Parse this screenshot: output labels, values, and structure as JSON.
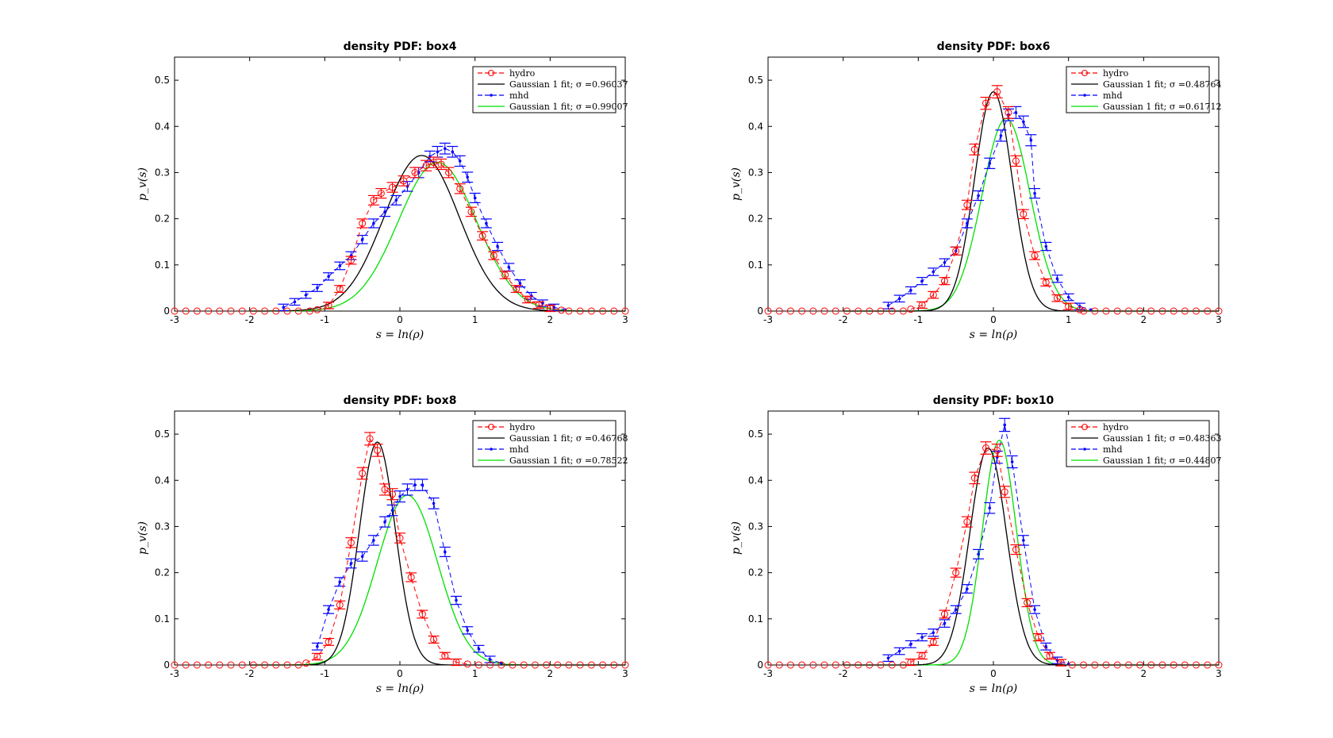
{
  "chart_data": [
    {
      "type": "line",
      "title": "density PDF: box4",
      "xlabel": "s = ln(ρ)",
      "ylabel": "p_v(s)",
      "xlim": [
        -3,
        3
      ],
      "ylim": [
        0,
        0.55
      ],
      "xticks": [
        -3,
        -2,
        -1,
        0,
        1,
        2,
        3
      ],
      "yticks": [
        0,
        0.1,
        0.2,
        0.3,
        0.4,
        0.5
      ],
      "legend_position": "top-right",
      "hydro": {
        "name": "hydro",
        "x": [
          -1.1,
          -0.95,
          -0.8,
          -0.65,
          -0.5,
          -0.35,
          -0.25,
          -0.1,
          0.05,
          0.2,
          0.35,
          0.45,
          0.55,
          0.65,
          0.8,
          0.95,
          1.1,
          1.25,
          1.4,
          1.55,
          1.7,
          1.85,
          2.0,
          2.15
        ],
        "y": [
          0.003,
          0.012,
          0.048,
          0.11,
          0.19,
          0.24,
          0.255,
          0.268,
          0.282,
          0.3,
          0.315,
          0.322,
          0.318,
          0.3,
          0.265,
          0.215,
          0.163,
          0.12,
          0.078,
          0.048,
          0.025,
          0.013,
          0.006,
          0.002
        ]
      },
      "hydro_fit": {
        "name": "Gaussian 1 fit; σ =0.96037",
        "amp": 0.337,
        "mu": 0.29,
        "sigma": 0.5
      },
      "mhd": {
        "name": "mhd",
        "x": [
          -1.55,
          -1.4,
          -1.25,
          -1.1,
          -0.95,
          -0.8,
          -0.65,
          -0.5,
          -0.35,
          -0.2,
          -0.05,
          0.1,
          0.25,
          0.4,
          0.5,
          0.6,
          0.7,
          0.8,
          0.9,
          1.0,
          1.15,
          1.3,
          1.45,
          1.6,
          1.75,
          1.9,
          2.05,
          2.2
        ],
        "y": [
          0.008,
          0.02,
          0.035,
          0.05,
          0.075,
          0.098,
          0.12,
          0.155,
          0.19,
          0.215,
          0.24,
          0.27,
          0.3,
          0.335,
          0.345,
          0.352,
          0.345,
          0.325,
          0.29,
          0.245,
          0.19,
          0.14,
          0.095,
          0.06,
          0.033,
          0.017,
          0.008,
          0.003
        ]
      },
      "mhd_fit": {
        "name": "Gaussian 1 fit; σ =0.99007",
        "amp": 0.322,
        "mu": 0.5,
        "sigma": 0.52
      }
    },
    {
      "type": "line",
      "title": "density PDF: box6",
      "xlabel": "s = ln(ρ)",
      "ylabel": "p_v(s)",
      "xlim": [
        -3,
        3
      ],
      "ylim": [
        0,
        0.55
      ],
      "xticks": [
        -3,
        -2,
        -1,
        0,
        1,
        2,
        3
      ],
      "yticks": [
        0,
        0.1,
        0.2,
        0.3,
        0.4,
        0.5
      ],
      "legend_position": "top-right",
      "hydro": {
        "name": "hydro",
        "x": [
          -1.1,
          -0.95,
          -0.8,
          -0.65,
          -0.5,
          -0.35,
          -0.25,
          -0.1,
          0.05,
          0.2,
          0.3,
          0.4,
          0.55,
          0.7,
          0.85,
          1.0,
          1.15
        ],
        "y": [
          0.004,
          0.013,
          0.035,
          0.065,
          0.13,
          0.23,
          0.35,
          0.45,
          0.475,
          0.43,
          0.325,
          0.21,
          0.12,
          0.062,
          0.028,
          0.01,
          0.003
        ]
      },
      "hydro_fit": {
        "name": "Gaussian 1 fit; σ =0.48764",
        "amp": 0.475,
        "mu": 0.0,
        "sigma": 0.25
      },
      "mhd": {
        "name": "mhd",
        "x": [
          -1.4,
          -1.25,
          -1.1,
          -0.95,
          -0.8,
          -0.65,
          -0.5,
          -0.35,
          -0.2,
          -0.05,
          0.1,
          0.2,
          0.3,
          0.4,
          0.5,
          0.55,
          0.7,
          0.85,
          1.0,
          1.15,
          1.3
        ],
        "y": [
          0.012,
          0.027,
          0.045,
          0.065,
          0.085,
          0.105,
          0.13,
          0.19,
          0.25,
          0.32,
          0.38,
          0.425,
          0.43,
          0.41,
          0.37,
          0.255,
          0.14,
          0.07,
          0.03,
          0.01,
          0.003
        ]
      },
      "mhd_fit": {
        "name": "Gaussian 1 fit; σ =0.61712",
        "amp": 0.417,
        "mu": 0.17,
        "sigma": 0.32
      }
    },
    {
      "type": "line",
      "title": "density PDF: box8",
      "xlabel": "s = ln(ρ)",
      "ylabel": "p_v(s)",
      "xlim": [
        -3,
        3
      ],
      "ylim": [
        0,
        0.55
      ],
      "xticks": [
        -3,
        -2,
        -1,
        0,
        1,
        2,
        3
      ],
      "yticks": [
        0,
        0.1,
        0.2,
        0.3,
        0.4,
        0.5
      ],
      "legend_position": "top-right",
      "hydro": {
        "name": "hydro",
        "x": [
          -1.25,
          -1.1,
          -0.95,
          -0.8,
          -0.65,
          -0.5,
          -0.4,
          -0.3,
          -0.2,
          -0.1,
          0.0,
          0.15,
          0.3,
          0.45,
          0.6,
          0.75,
          0.9
        ],
        "y": [
          0.004,
          0.018,
          0.05,
          0.13,
          0.265,
          0.415,
          0.49,
          0.465,
          0.38,
          0.37,
          0.275,
          0.19,
          0.11,
          0.055,
          0.02,
          0.006,
          0.002
        ]
      },
      "hydro_fit": {
        "name": "Gaussian 1 fit; σ =0.46768",
        "amp": 0.483,
        "mu": -0.3,
        "sigma": 0.24
      },
      "mhd": {
        "name": "mhd",
        "x": [
          -1.1,
          -0.95,
          -0.8,
          -0.65,
          -0.5,
          -0.35,
          -0.2,
          -0.1,
          0.0,
          0.1,
          0.2,
          0.3,
          0.45,
          0.6,
          0.75,
          0.9,
          1.05,
          1.2,
          1.35
        ],
        "y": [
          0.04,
          0.12,
          0.18,
          0.22,
          0.235,
          0.27,
          0.31,
          0.335,
          0.365,
          0.38,
          0.39,
          0.39,
          0.35,
          0.245,
          0.14,
          0.075,
          0.035,
          0.012,
          0.004
        ]
      },
      "mhd_fit": {
        "name": "Gaussian 1 fit; σ =0.78522",
        "amp": 0.368,
        "mu": 0.1,
        "sigma": 0.4
      }
    },
    {
      "type": "line",
      "title": "density PDF: box10",
      "xlabel": "s = ln(ρ)",
      "ylabel": "p_v(s)",
      "xlim": [
        -3,
        3
      ],
      "ylim": [
        0,
        0.55
      ],
      "xticks": [
        -3,
        -2,
        -1,
        0,
        1,
        2,
        3
      ],
      "yticks": [
        0,
        0.1,
        0.2,
        0.3,
        0.4,
        0.5
      ],
      "legend_position": "top-right",
      "hydro": {
        "name": "hydro",
        "x": [
          -1.1,
          -0.95,
          -0.8,
          -0.65,
          -0.5,
          -0.35,
          -0.25,
          -0.1,
          0.05,
          0.15,
          0.3,
          0.45,
          0.6,
          0.75,
          0.9
        ],
        "y": [
          0.006,
          0.02,
          0.05,
          0.11,
          0.2,
          0.31,
          0.405,
          0.47,
          0.465,
          0.375,
          0.25,
          0.135,
          0.06,
          0.02,
          0.005
        ]
      },
      "hydro_fit": {
        "name": "Gaussian 1 fit; σ =0.48363",
        "amp": 0.47,
        "mu": -0.07,
        "sigma": 0.245
      },
      "mhd": {
        "name": "mhd",
        "x": [
          -1.4,
          -1.25,
          -1.1,
          -0.95,
          -0.8,
          -0.65,
          -0.5,
          -0.35,
          -0.2,
          -0.05,
          0.05,
          0.15,
          0.25,
          0.4,
          0.55,
          0.7,
          0.85,
          1.0
        ],
        "y": [
          0.015,
          0.03,
          0.045,
          0.06,
          0.07,
          0.09,
          0.12,
          0.165,
          0.24,
          0.34,
          0.45,
          0.52,
          0.44,
          0.27,
          0.12,
          0.04,
          0.01,
          0.002
        ]
      },
      "mhd_fit": {
        "name": "Gaussian 1 fit; σ =0.44807",
        "amp": 0.487,
        "mu": 0.08,
        "sigma": 0.225
      }
    }
  ],
  "colors": {
    "hydro": "#ff0000",
    "hydro_fit": "#000000",
    "mhd": "#0000ff",
    "mhd_fit": "#00e000"
  }
}
